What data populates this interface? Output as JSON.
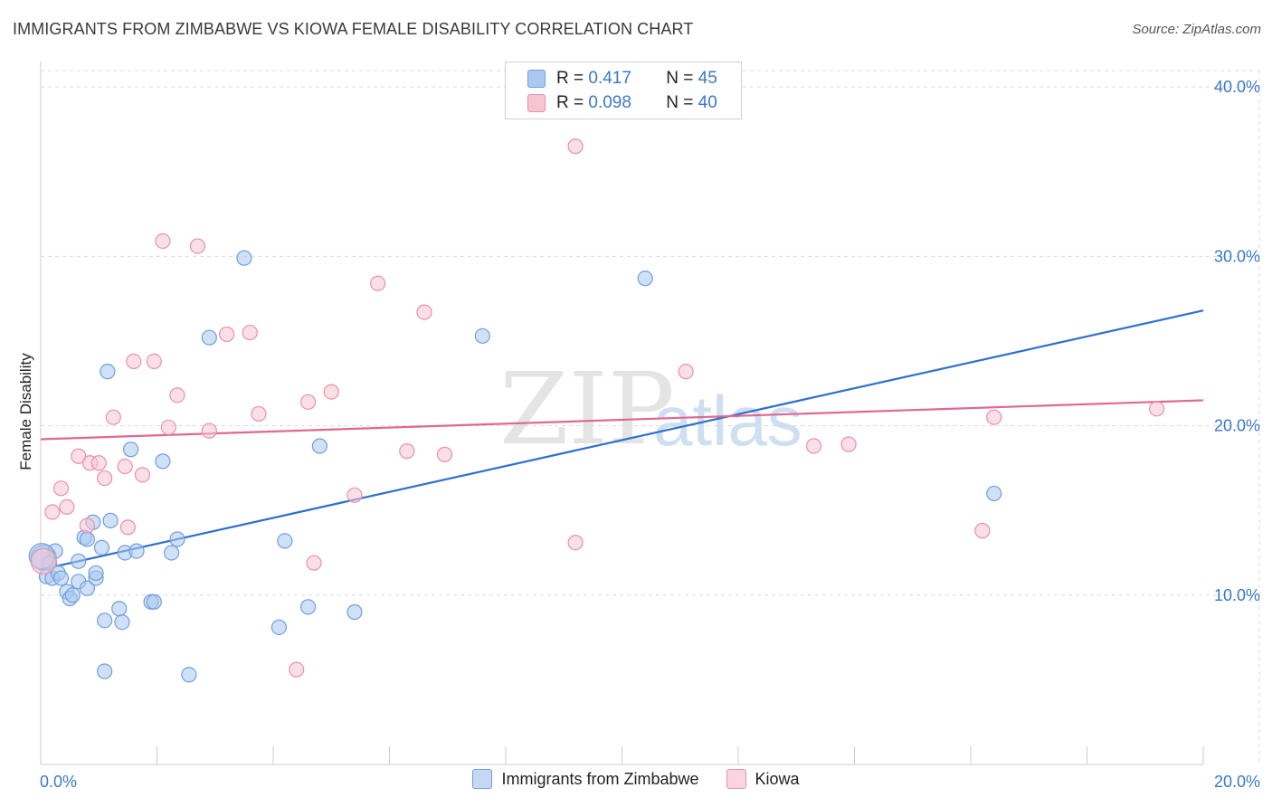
{
  "title": "IMMIGRANTS FROM ZIMBABWE VS KIOWA FEMALE DISABILITY CORRELATION CHART",
  "source": "Source: ZipAtlas.com",
  "watermark": {
    "zip": "ZIP",
    "atlas": "atlas"
  },
  "legend": {
    "rows": [
      {
        "r_label": "R =",
        "r_value": "0.417",
        "n_label": "N =",
        "n_value": "45",
        "color": "#aac8f0",
        "border": "#6f9fdc"
      },
      {
        "r_label": "R =",
        "r_value": "0.098",
        "n_label": "N =",
        "n_value": "40",
        "color": "#f8c4d4",
        "border": "#e890ac"
      }
    ]
  },
  "bottom_legend": {
    "series1": "Immigrants from Zimbabwe",
    "series2": "Kiowa"
  },
  "chart_data": {
    "type": "scatter",
    "title": "IMMIGRANTS FROM ZIMBABWE VS KIOWA FEMALE DISABILITY CORRELATION CHART",
    "xlabel": "",
    "ylabel": "Female Disability",
    "xlim": [
      0,
      20
    ],
    "ylim": [
      0,
      41.5
    ],
    "x_tick_labels": [
      "0.0%",
      "20.0%"
    ],
    "y_ticks": [
      10,
      20,
      30,
      40
    ],
    "y_tick_labels": [
      "10.0%",
      "20.0%",
      "30.0%",
      "40.0%"
    ],
    "series": [
      {
        "name": "Immigrants from Zimbabwe",
        "color": "#6f9fdc",
        "fill": "#aac8f0",
        "trend": {
          "x": [
            0,
            20
          ],
          "y": [
            11.5,
            26.8
          ],
          "color": "#2f6fcf"
        },
        "points": [
          [
            0.05,
            12.2
          ],
          [
            0.1,
            11.1
          ],
          [
            0.15,
            11.9
          ],
          [
            0.2,
            11.0
          ],
          [
            0.25,
            12.6
          ],
          [
            0.3,
            11.3
          ],
          [
            0.35,
            11.0
          ],
          [
            0.45,
            10.2
          ],
          [
            0.5,
            9.8
          ],
          [
            0.55,
            10.0
          ],
          [
            0.65,
            12.0
          ],
          [
            0.65,
            10.8
          ],
          [
            0.75,
            13.4
          ],
          [
            0.8,
            13.3
          ],
          [
            0.8,
            10.4
          ],
          [
            0.9,
            14.3
          ],
          [
            0.95,
            11.0
          ],
          [
            0.95,
            11.3
          ],
          [
            1.05,
            12.8
          ],
          [
            1.1,
            8.5
          ],
          [
            1.1,
            5.5
          ],
          [
            1.15,
            23.2
          ],
          [
            1.2,
            14.4
          ],
          [
            1.35,
            9.2
          ],
          [
            1.4,
            8.4
          ],
          [
            1.45,
            12.5
          ],
          [
            1.55,
            18.6
          ],
          [
            1.65,
            12.6
          ],
          [
            1.9,
            9.6
          ],
          [
            1.95,
            9.6
          ],
          [
            2.1,
            17.9
          ],
          [
            2.25,
            12.5
          ],
          [
            2.35,
            13.3
          ],
          [
            2.55,
            5.3
          ],
          [
            2.9,
            25.2
          ],
          [
            3.5,
            29.9
          ],
          [
            4.1,
            8.1
          ],
          [
            4.2,
            13.2
          ],
          [
            4.6,
            9.3
          ],
          [
            4.8,
            18.8
          ],
          [
            5.4,
            9.0
          ],
          [
            7.6,
            25.3
          ],
          [
            10.4,
            28.7
          ],
          [
            16.4,
            16.0
          ],
          [
            0.02,
            12.3
          ]
        ]
      },
      {
        "name": "Kiowa",
        "color": "#e890ac",
        "fill": "#f8c4d4",
        "trend": {
          "x": [
            0,
            20
          ],
          "y": [
            19.2,
            21.5
          ],
          "color": "#e06890"
        },
        "points": [
          [
            0.2,
            14.9
          ],
          [
            0.35,
            16.3
          ],
          [
            0.45,
            15.2
          ],
          [
            0.65,
            18.2
          ],
          [
            0.85,
            17.8
          ],
          [
            0.8,
            14.1
          ],
          [
            1.0,
            17.8
          ],
          [
            1.1,
            16.9
          ],
          [
            1.25,
            20.5
          ],
          [
            1.45,
            17.6
          ],
          [
            1.5,
            14.0
          ],
          [
            1.6,
            23.8
          ],
          [
            1.75,
            17.1
          ],
          [
            1.95,
            23.8
          ],
          [
            2.1,
            30.9
          ],
          [
            2.2,
            19.9
          ],
          [
            2.35,
            21.8
          ],
          [
            2.7,
            30.6
          ],
          [
            2.9,
            19.7
          ],
          [
            3.2,
            25.4
          ],
          [
            3.6,
            25.5
          ],
          [
            3.75,
            20.7
          ],
          [
            4.4,
            5.6
          ],
          [
            4.6,
            21.4
          ],
          [
            4.7,
            11.9
          ],
          [
            5.0,
            22.0
          ],
          [
            5.4,
            15.9
          ],
          [
            5.8,
            28.4
          ],
          [
            6.3,
            18.5
          ],
          [
            6.6,
            26.7
          ],
          [
            6.95,
            18.3
          ],
          [
            9.2,
            13.1
          ],
          [
            9.2,
            36.5
          ],
          [
            11.1,
            23.2
          ],
          [
            13.3,
            18.8
          ],
          [
            13.9,
            18.9
          ],
          [
            16.2,
            13.8
          ],
          [
            16.4,
            20.5
          ],
          [
            19.2,
            21.0
          ],
          [
            0.05,
            12.0
          ]
        ]
      }
    ]
  }
}
